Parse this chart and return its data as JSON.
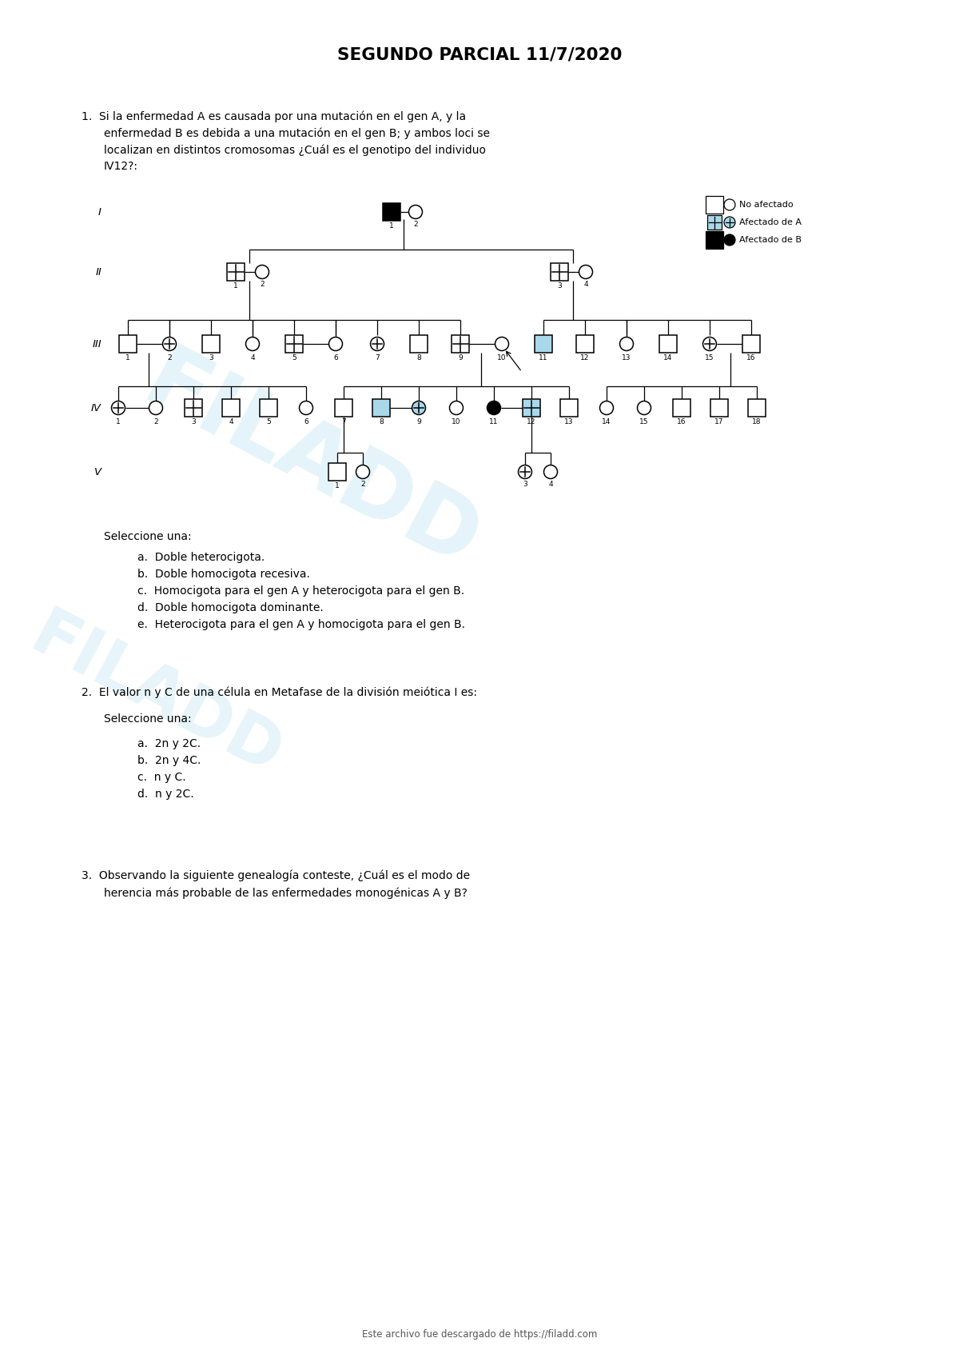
{
  "title": "SEGUNDO PARCIAL 11/7/2020",
  "bg": "#ffffff",
  "black": "#000000",
  "white": "#ffffff",
  "blue": "#a8d8ea",
  "footer": "Este archivo fue descargado de https://filadd.com",
  "q1_lines": [
    "1.  Si la enfermedad A es causada por una mutación en el gen A, y la",
    "enfermedad B es debida a una mutación en el gen B; y ambos loci se",
    "localizan en distintos cromosomas ¿Cuál es el genotipo del individuo",
    "IV12?:"
  ],
  "seleccione": "Seleccione una:",
  "q1_opts": [
    "a.  Doble heterocigota.",
    "b.  Doble homocigota recesiva.",
    "c.  Homocigota para el gen A y heterocigota para el gen B.",
    "d.  Doble homocigota dominante.",
    "e.  Heterocigota para el gen A y homocigota para el gen B."
  ],
  "q2_line": "2.  El valor n y C de una célula en Metafase de la división meiótica I es:",
  "q2_opts": [
    "a.  2n y 2C.",
    "b.  2n y 4C.",
    "c.  n y C.",
    "d.  n y 2C."
  ],
  "q3_lines": [
    "3.  Observando la siguiente genealogía conteste, ¿Cuál es el modo de",
    "herencia más probable de las enfermedades monogénicas A y B?"
  ],
  "legend": [
    "No afectado",
    "Afectado de A",
    "Afectado de B"
  ]
}
